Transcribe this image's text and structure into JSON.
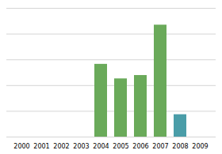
{
  "chart_data": {
    "type": "bar",
    "categories": [
      "2000",
      "2001",
      "2002",
      "2003",
      "2004",
      "2005",
      "2006",
      "2007",
      "2008",
      "2009"
    ],
    "values": [
      0,
      0,
      0,
      0,
      65,
      52,
      55,
      100,
      20,
      0
    ],
    "colors": [
      "#6aaa5a",
      "#6aaa5a",
      "#6aaa5a",
      "#6aaa5a",
      "#6aaa5a",
      "#6aaa5a",
      "#6aaa5a",
      "#6aaa5a",
      "#4a9da8",
      "#6aaa5a"
    ],
    "ylim": [
      0,
      115
    ],
    "yticks": [
      0,
      23,
      46,
      69,
      92,
      115
    ],
    "grid": true,
    "tick_labels": "x"
  }
}
